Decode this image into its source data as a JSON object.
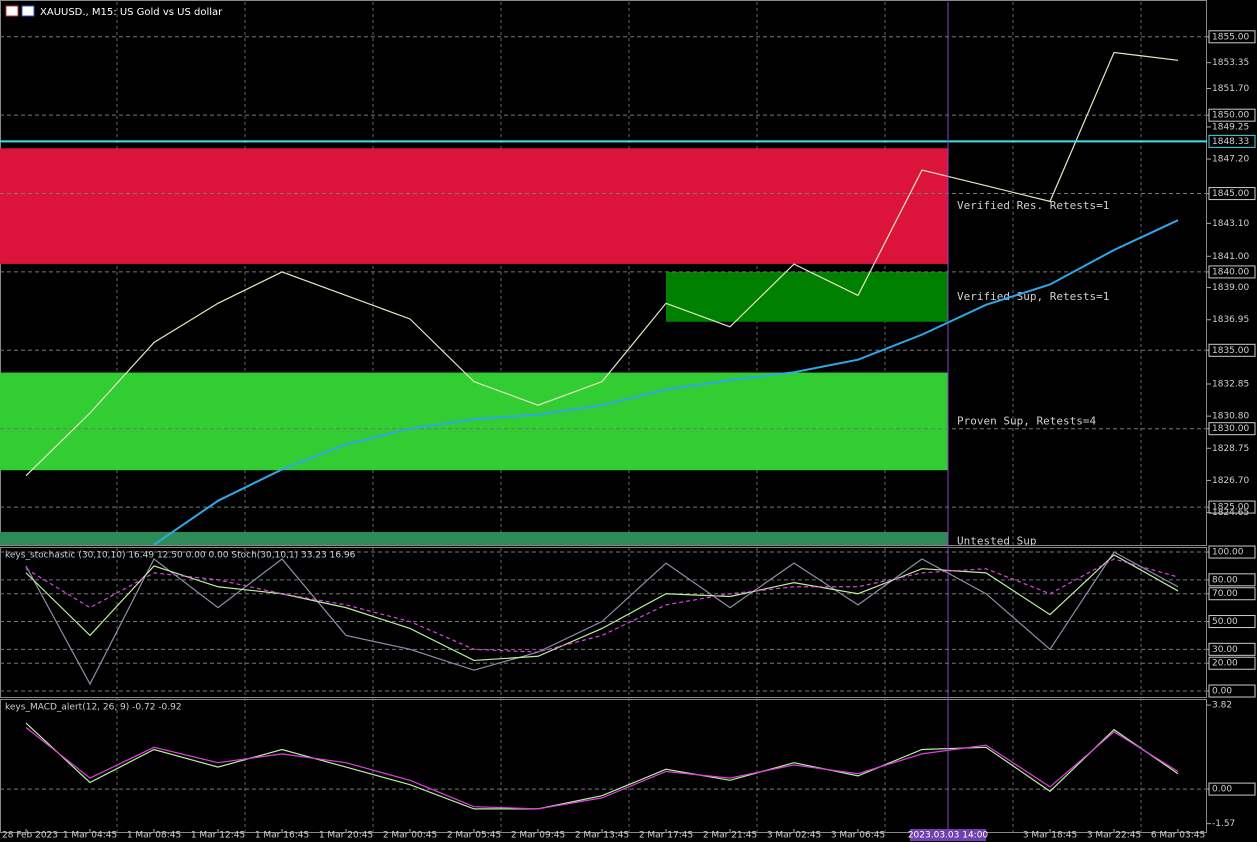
{
  "crosshair_time": "2023.03.03 14:00",
  "chart_data": [
    {
      "type": "line",
      "title": "XAUUSD., M15: US Gold vs US dollar",
      "categories": [
        "28 Feb 2023",
        "1 Mar 04:45",
        "1 Mar 08:45",
        "1 Mar 12:45",
        "1 Mar 16:45",
        "1 Mar 20:45",
        "2 Mar 00:45",
        "2 Mar 05:45",
        "2 Mar 09:45",
        "2 Mar 13:45",
        "2 Mar 17:45",
        "2 Mar 21:45",
        "3 Mar 02:45",
        "3 Mar 06:45",
        null,
        null,
        "3 Mar 18:45",
        "3 Mar 22:45",
        "6 Mar 03:45"
      ],
      "series": [
        {
          "color": "#e8e6c0",
          "values": [
            1827,
            1831,
            1835.5,
            1838,
            1840,
            1838.5,
            1837,
            1833,
            1831.5,
            1833,
            1838,
            1836.5,
            1840.5,
            1838.5,
            1846.5,
            1845.5,
            1844.5,
            1854,
            1853.5
          ]
        },
        {
          "color": "#2ea8e8",
          "values": [
            null,
            null,
            1822.6,
            1825.4,
            1827.4,
            1829,
            1830,
            1830.6,
            1830.9,
            1831.5,
            1832.5,
            1833.1,
            1833.6,
            1834.4,
            1836,
            1837.9,
            1839.2,
            1841.4,
            1843.3
          ]
        }
      ],
      "zones": [
        {
          "label": "Verified Res. Retests=1",
          "from": 1840.51,
          "to": 1847.89,
          "color": "#dc143c"
        },
        {
          "label": "Verified Sup, Retests=1",
          "from": 1836.82,
          "to": 1840.0,
          "color": "#008000",
          "start_category": 10
        },
        {
          "label": "Proven Sup, Retests=4",
          "from": 1827.35,
          "to": 1833.58,
          "color": "#32cd32"
        },
        {
          "label": "Untested Sup",
          "from": 1822.2,
          "to": 1823.41,
          "color": "#2e8b57"
        }
      ],
      "current_price": 1848.33,
      "ylim": [
        1822.58,
        1857.22
      ],
      "yticks": [
        {
          "value": 1855,
          "label": "1855.00",
          "boxed": true
        },
        1853.35,
        {
          "value": 1851.7,
          "label": "1851.70"
        },
        {
          "value": 1850,
          "label": "1850.00",
          "boxed": true
        },
        1849.25,
        {
          "value": 1847.2,
          "label": "1847.20"
        },
        {
          "value": 1845,
          "label": "1845.00",
          "boxed": true
        },
        {
          "value": 1843.1,
          "label": "1843.10"
        },
        {
          "value": 1841,
          "label": "1841.00"
        },
        {
          "value": 1840,
          "label": "1840.00",
          "boxed": true
        },
        {
          "value": 1839,
          "label": "1839.00"
        },
        1836.95,
        {
          "value": 1835,
          "label": "1835.00",
          "boxed": true
        },
        1832.85,
        {
          "value": 1830.8,
          "label": "1830.80"
        },
        {
          "value": 1830,
          "label": "1830.00",
          "boxed": true
        },
        1828.75,
        {
          "value": 1826.7,
          "label": "1826.70"
        },
        {
          "value": 1825,
          "label": "1825.00",
          "boxed": true
        },
        1824.65
      ]
    },
    {
      "type": "line",
      "title": "keys_stochastic (30,10,10) 16.49 12.50 0.00 0.00 Stoch(30,10,1) 33.23 16.96",
      "series": [
        {
          "color": "#8a8fa8",
          "values": [
            90,
            5,
            95,
            60,
            95,
            40,
            30,
            15,
            28,
            50,
            92,
            60,
            92,
            62,
            95,
            70,
            30,
            100,
            75
          ]
        },
        {
          "color": "#b8f0a0",
          "values": [
            85,
            40,
            90,
            75,
            70,
            60,
            45,
            22,
            25,
            45,
            70,
            68,
            78,
            70,
            88,
            85,
            55,
            98,
            72
          ]
        },
        {
          "color": "#e040e0",
          "dash": true,
          "values": [
            88,
            60,
            85,
            80,
            70,
            62,
            50,
            30,
            28,
            40,
            62,
            70,
            75,
            75,
            85,
            88,
            70,
            95,
            82
          ]
        }
      ],
      "ylim": [
        -4.3,
        102.9
      ],
      "yticks": [
        {
          "value": 100,
          "label": "100.00",
          "boxed": true
        },
        {
          "value": 80,
          "label": "80.00",
          "boxed": true
        },
        {
          "value": 70,
          "label": "70.00",
          "boxed": true
        },
        {
          "value": 50,
          "label": "50.00",
          "boxed": true
        },
        {
          "value": 30,
          "label": "30.00",
          "boxed": true
        },
        {
          "value": 20,
          "label": "20.00",
          "boxed": true
        },
        {
          "value": 0,
          "label": "0.00",
          "boxed": true
        }
      ]
    },
    {
      "type": "line",
      "title": "keys_MACD_alert(12, 26, 9) -0.72 -0.92",
      "series": [
        {
          "color": "#b8f0a0",
          "values": [
            3.0,
            0.3,
            1.8,
            1.0,
            1.8,
            1.0,
            0.2,
            -0.9,
            -0.9,
            -0.3,
            0.9,
            0.4,
            1.2,
            0.6,
            1.8,
            1.9,
            -0.1,
            2.7,
            0.7
          ]
        },
        {
          "color": "#e040e0",
          "values": [
            2.8,
            0.5,
            1.9,
            1.2,
            1.6,
            1.2,
            0.4,
            -0.8,
            -0.9,
            -0.4,
            0.8,
            0.5,
            1.1,
            0.7,
            1.6,
            2.0,
            0.1,
            2.6,
            0.8
          ]
        }
      ],
      "ylim": [
        -1.95,
        4.05
      ],
      "yticks": [
        3.82,
        {
          "value": 0,
          "label": "0.00",
          "boxed": true
        },
        -1.57
      ]
    }
  ]
}
